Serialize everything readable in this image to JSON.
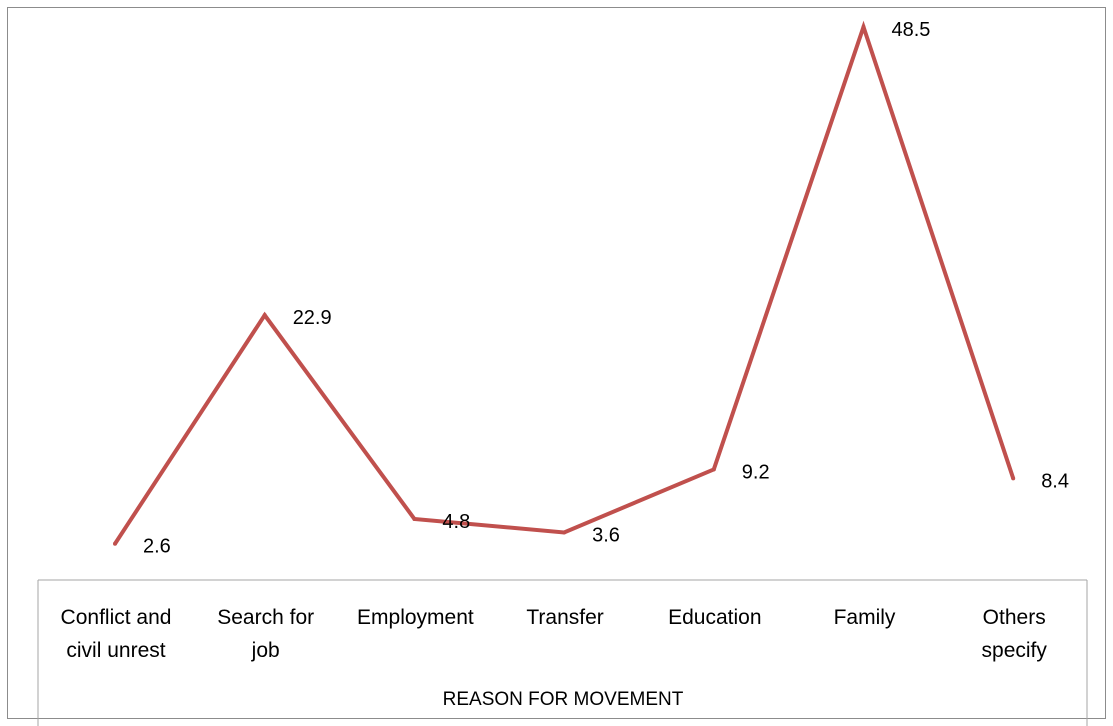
{
  "chart_data": {
    "type": "line",
    "title": "",
    "xlabel": "REASON FOR MOVEMENT",
    "ylabel": "",
    "categories": [
      [
        "Conflict and",
        "civil unrest"
      ],
      [
        "Search for",
        "job"
      ],
      [
        "Employment"
      ],
      [
        "Transfer"
      ],
      [
        "Education"
      ],
      [
        "Family"
      ],
      [
        "Others",
        "specify"
      ]
    ],
    "values": [
      2.6,
      22.9,
      4.8,
      3.6,
      9.2,
      48.5,
      8.4
    ],
    "data_labels": [
      "2.6",
      "22.9",
      "4.8",
      "3.6",
      "9.2",
      "48.5",
      "8.4"
    ],
    "ylim": [
      0,
      50
    ],
    "grid": false,
    "legend": "none",
    "series_color": "#c0504d"
  }
}
